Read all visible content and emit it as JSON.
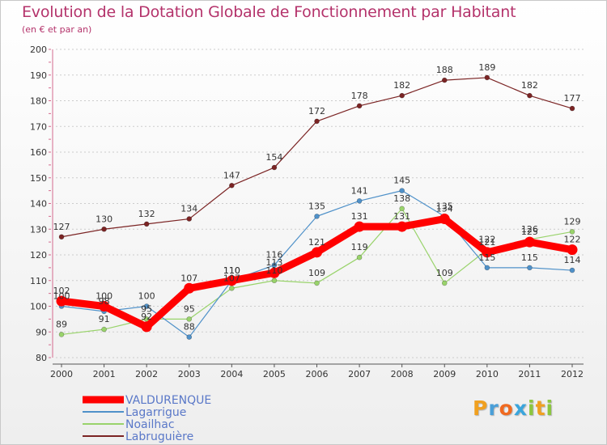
{
  "title": "Evolution de la Dotation Globale de Fonctionnement par Habitant",
  "subtitle": "(en € et par an)",
  "logo": {
    "text": "Proxiti",
    "letters": [
      {
        "ch": "P",
        "color": "#f0a020"
      },
      {
        "ch": "r",
        "color": "#4a9fd8"
      },
      {
        "ch": "o",
        "color": "#f06a20"
      },
      {
        "ch": "x",
        "color": "#3aa5dc"
      },
      {
        "ch": "i",
        "color": "#8cc63f"
      },
      {
        "ch": "t",
        "color": "#f0a020"
      },
      {
        "ch": "i",
        "color": "#8cc63f"
      }
    ]
  },
  "chart_data": {
    "type": "line",
    "title": "Evolution de la Dotation Globale de Fonctionnement par Habitant",
    "subtitle": "(en € et par an)",
    "xlabel": "",
    "ylabel": "",
    "x": [
      2000,
      2001,
      2002,
      2003,
      2004,
      2005,
      2006,
      2007,
      2008,
      2009,
      2010,
      2011,
      2012
    ],
    "ylim": [
      80,
      200
    ],
    "yticks": [
      80,
      90,
      100,
      110,
      120,
      130,
      140,
      150,
      160,
      170,
      180,
      190,
      200
    ],
    "grid": "horizontal-dotted",
    "legend_position": "bottom-left",
    "series": [
      {
        "name": "VALDURENQUE",
        "color": "#ff0000",
        "values": [
          102,
          100,
          92,
          107,
          110,
          113,
          121,
          131,
          131,
          134,
          121,
          125,
          122
        ]
      },
      {
        "name": "Lagarrigue",
        "color": "#4f91c9",
        "values": [
          100,
          98,
          100,
          88,
          110,
          116,
          135,
          141,
          145,
          135,
          115,
          115,
          114
        ]
      },
      {
        "name": "Noailhac",
        "color": "#99d36b",
        "values": [
          89,
          91,
          95,
          95,
          107,
          110,
          109,
          119,
          138,
          109,
          122,
          126,
          129
        ]
      },
      {
        "name": "Labruguière",
        "color": "#7b2424",
        "values": [
          127,
          130,
          132,
          134,
          147,
          154,
          172,
          178,
          182,
          188,
          189,
          182,
          177
        ]
      }
    ]
  }
}
